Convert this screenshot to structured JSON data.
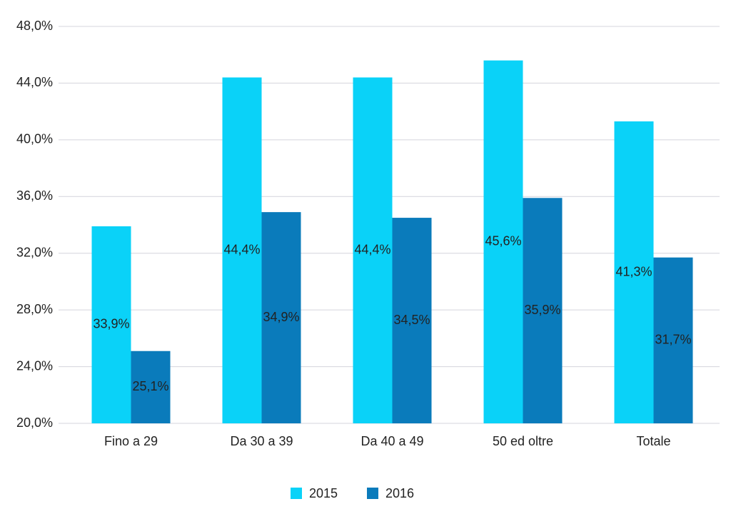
{
  "chart_data": {
    "type": "bar",
    "categories": [
      "Fino a 29",
      "Da 30 a 39",
      "Da 40 a 49",
      "50 ed oltre",
      "Totale"
    ],
    "series": [
      {
        "name": "2015",
        "color": "#0ad2f8",
        "values": [
          33.9,
          44.4,
          44.4,
          45.6,
          41.3
        ],
        "value_labels": [
          "33,9%",
          "44,4%",
          "44,4%",
          "45,6%",
          "41,3%"
        ]
      },
      {
        "name": "2016",
        "color": "#0a7bbb",
        "values": [
          25.1,
          34.9,
          34.5,
          35.9,
          31.7
        ],
        "value_labels": [
          "25,1%",
          "34,9%",
          "34,5%",
          "35,9%",
          "31,7%"
        ]
      }
    ],
    "ylim": [
      20,
      48
    ],
    "yticks": [
      {
        "value": 20,
        "label": "20,0%"
      },
      {
        "value": 24,
        "label": "24,0%"
      },
      {
        "value": 28,
        "label": "28,0%"
      },
      {
        "value": 32,
        "label": "32,0%"
      },
      {
        "value": 36,
        "label": "36,0%"
      },
      {
        "value": 40,
        "label": "40,0%"
      },
      {
        "value": 44,
        "label": "44,0%"
      },
      {
        "value": 48,
        "label": "48,0%"
      }
    ],
    "grid": true,
    "legend": "bottom"
  }
}
